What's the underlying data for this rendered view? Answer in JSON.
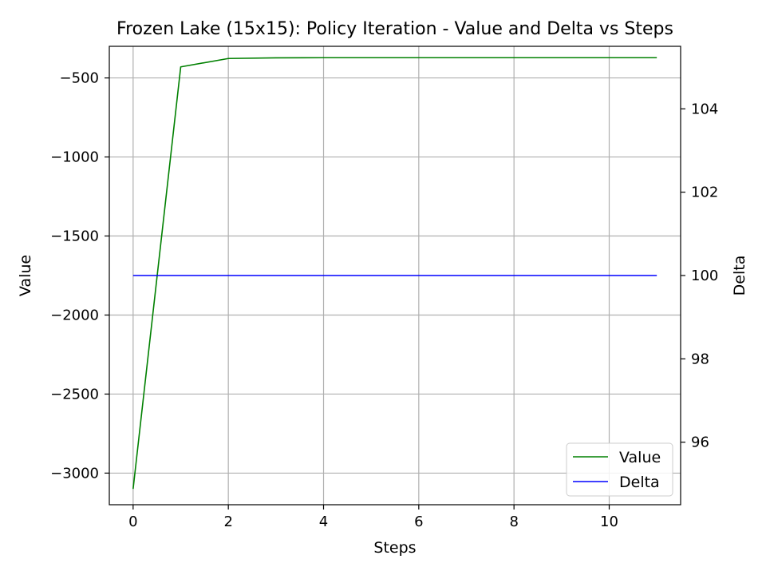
{
  "chart_data": {
    "type": "line",
    "title": "Frozen Lake (15x15): Policy Iteration - Value and Delta vs Steps",
    "xlabel": "Steps",
    "ylabel": "Value",
    "y2label": "Delta",
    "xlim": [
      -0.5,
      11.5
    ],
    "ylim": [
      -3200,
      -300
    ],
    "y2lim": [
      94.5,
      105.5
    ],
    "xticks": [
      0,
      2,
      4,
      6,
      8,
      10
    ],
    "yticks": [
      -3000,
      -2500,
      -2000,
      -1500,
      -1000,
      -500
    ],
    "y2ticks": [
      96,
      98,
      100,
      102,
      104
    ],
    "grid": true,
    "legend_position": "lower-right",
    "x": [
      0,
      1,
      2,
      3,
      4,
      5,
      6,
      7,
      8,
      9,
      10,
      11
    ],
    "series": [
      {
        "name": "Value",
        "axis": "left",
        "color": "#008000",
        "values": [
          -3100,
          -430,
          -377,
          -373,
          -372,
          -372,
          -372,
          -372,
          -372,
          -372,
          -372,
          -372
        ]
      },
      {
        "name": "Delta",
        "axis": "right",
        "color": "#0000ff",
        "values": [
          100,
          100,
          100,
          100,
          100,
          100,
          100,
          100,
          100,
          100,
          100,
          100
        ]
      }
    ]
  }
}
